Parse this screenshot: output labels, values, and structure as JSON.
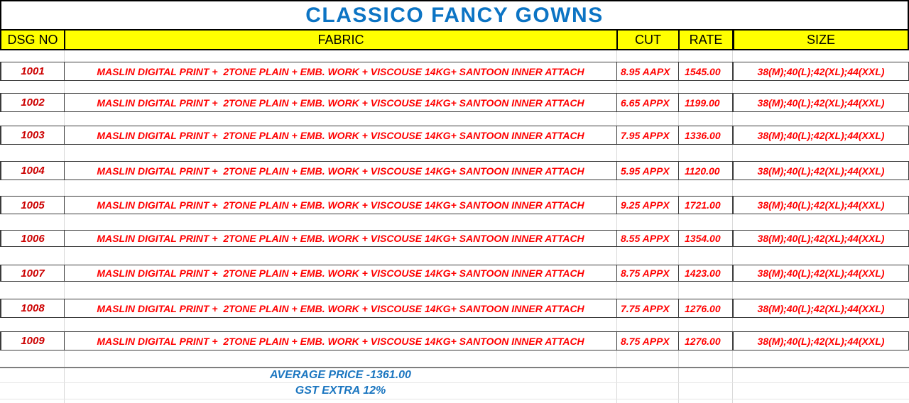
{
  "title": "CLASSICO FANCY GOWNS",
  "columns": [
    {
      "key": "dsg",
      "label": "DSG NO"
    },
    {
      "key": "fabric",
      "label": "FABRIC"
    },
    {
      "key": "cut",
      "label": "CUT"
    },
    {
      "key": "rate",
      "label": "RATE"
    },
    {
      "key": "size",
      "label": "SIZE"
    }
  ],
  "rows": [
    {
      "dsg": "1001",
      "fabric": "MASLIN DIGITAL PRINT +  2TONE PLAIN + EMB. WORK + VISCOUSE 14KG+ SANTOON INNER ATTACH",
      "cut": "8.95 AAPX",
      "rate": "1545.00",
      "size": "38(M);40(L);42(XL);44(XXL)"
    },
    {
      "dsg": "1002",
      "fabric": "MASLIN DIGITAL PRINT +  2TONE PLAIN + EMB. WORK + VISCOUSE 14KG+ SANTOON INNER ATTACH",
      "cut": "6.65 APPX",
      "rate": "1199.00",
      "size": "38(M);40(L);42(XL);44(XXL)"
    },
    {
      "dsg": "1003",
      "fabric": "MASLIN DIGITAL PRINT +  2TONE PLAIN + EMB. WORK + VISCOUSE 14KG+ SANTOON INNER ATTACH",
      "cut": "7.95 APPX",
      "rate": "1336.00",
      "size": "38(M);40(L);42(XL);44(XXL)"
    },
    {
      "dsg": "1004",
      "fabric": "MASLIN DIGITAL PRINT +  2TONE PLAIN + EMB. WORK + VISCOUSE 14KG+ SANTOON INNER ATTACH",
      "cut": "5.95 APPX",
      "rate": "1120.00",
      "size": "38(M);40(L);42(XL);44(XXL)"
    },
    {
      "dsg": "1005",
      "fabric": "MASLIN DIGITAL PRINT +  2TONE PLAIN + EMB. WORK + VISCOUSE 14KG+ SANTOON INNER ATTACH",
      "cut": "9.25 APPX",
      "rate": "1721.00",
      "size": "38(M);40(L);42(XL);44(XXL)"
    },
    {
      "dsg": "1006",
      "fabric": "MASLIN DIGITAL PRINT +  2TONE PLAIN + EMB. WORK + VISCOUSE 14KG+ SANTOON INNER ATTACH",
      "cut": "8.55 APPX",
      "rate": "1354.00",
      "size": "38(M);40(L);42(XL);44(XXL)"
    },
    {
      "dsg": "1007",
      "fabric": "MASLIN DIGITAL PRINT +  2TONE PLAIN + EMB. WORK + VISCOUSE 14KG+ SANTOON INNER ATTACH",
      "cut": "8.75 APPX",
      "rate": "1423.00",
      "size": "38(M);40(L);42(XL);44(XXL)"
    },
    {
      "dsg": "1008",
      "fabric": "MASLIN DIGITAL PRINT +  2TONE PLAIN + EMB. WORK + VISCOUSE 14KG+ SANTOON INNER ATTACH",
      "cut": "7.75 APPX",
      "rate": "1276.00",
      "size": "38(M);40(L);42(XL);44(XXL)"
    },
    {
      "dsg": "1009",
      "fabric": "MASLIN DIGITAL PRINT +  2TONE PLAIN + EMB. WORK + VISCOUSE 14KG+ SANTOON INNER ATTACH",
      "cut": "8.75 APPX",
      "rate": "1276.00",
      "size": "38(M);40(L);42(XL);44(XXL)"
    }
  ],
  "footer": {
    "average_price": "AVERAGE PRICE -1361.00",
    "gst_note": "GST EXTRA 12%"
  },
  "colors": {
    "header_bg": "#FFFF00",
    "title_blue": "#0C74C4",
    "footer_blue": "#1B76C0",
    "data_red": "#FF0000",
    "dsg_red": "#CC0000",
    "border_dark": "#3B3B3B",
    "grid_light": "#D9D9D9"
  }
}
